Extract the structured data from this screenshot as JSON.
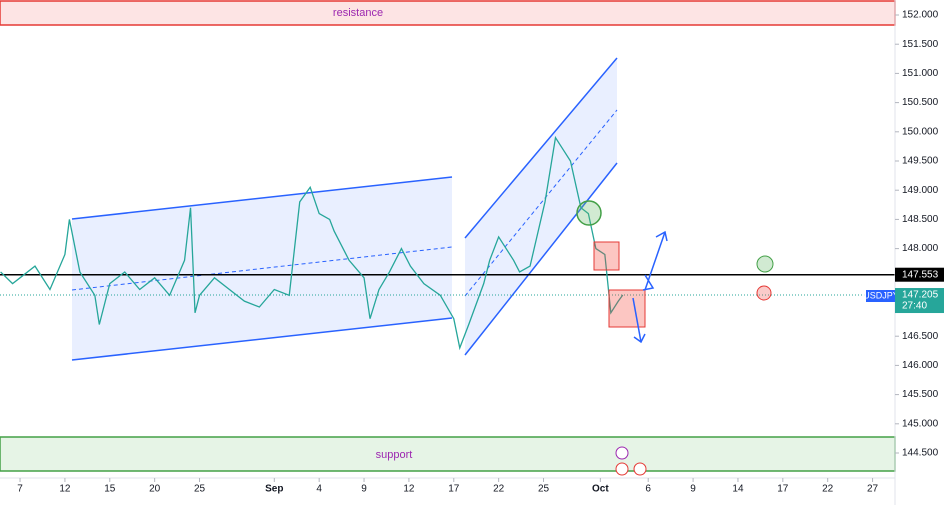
{
  "chart_data": {
    "type": "line",
    "symbol": "USDJPY",
    "countdown": "27:40",
    "annotations": [
      "resistance",
      "support"
    ],
    "last_price": 147.205,
    "hline": 147.553,
    "xlim": [
      -1.34,
      58.5
    ],
    "ylim": [
      144.072,
      152.257
    ],
    "xticks": [
      {
        "value": 0,
        "label": "7"
      },
      {
        "value": 3,
        "label": "12"
      },
      {
        "value": 6,
        "label": "15"
      },
      {
        "value": 9,
        "label": "20"
      },
      {
        "value": 12,
        "label": "25"
      },
      {
        "value": 17,
        "label": "Sep"
      },
      {
        "value": 20,
        "label": "4"
      },
      {
        "value": 23,
        "label": "9"
      },
      {
        "value": 26,
        "label": "12"
      },
      {
        "value": 29,
        "label": "17"
      },
      {
        "value": 32,
        "label": "22"
      },
      {
        "value": 35,
        "label": "25"
      },
      {
        "value": 38.8,
        "label": "Oct"
      },
      {
        "value": 42,
        "label": "6"
      },
      {
        "value": 45,
        "label": "9"
      },
      {
        "value": 48,
        "label": "14"
      },
      {
        "value": 51,
        "label": "17"
      },
      {
        "value": 54,
        "label": "22"
      },
      {
        "value": 57,
        "label": "27"
      }
    ],
    "yticks": [
      {
        "value": 144.5,
        "label": "144.500"
      },
      {
        "value": 145,
        "label": "145.000"
      },
      {
        "value": 145.5,
        "label": "145.500"
      },
      {
        "value": 146,
        "label": "146.000"
      },
      {
        "value": 146.5,
        "label": "146.500"
      },
      {
        "value": 147,
        "label": "147.000"
      },
      {
        "value": 147.5,
        "label": "147.500"
      },
      {
        "value": 148,
        "label": "148.000"
      },
      {
        "value": 148.5,
        "label": "148.500"
      },
      {
        "value": 149,
        "label": "149.000"
      },
      {
        "value": 149.5,
        "label": "149.500"
      },
      {
        "value": 150,
        "label": "150.000"
      },
      {
        "value": 150.5,
        "label": "150.500"
      },
      {
        "value": 151,
        "label": "151.000"
      },
      {
        "value": 151.5,
        "label": "151.500"
      },
      {
        "value": 152,
        "label": "152.000"
      }
    ],
    "x": [
      -1.3,
      -0.5,
      0,
      1,
      2,
      3,
      3.3,
      4,
      5,
      5.3,
      6,
      7,
      8,
      9,
      10,
      11,
      11.4,
      11.7,
      12,
      13,
      14,
      15,
      16,
      17,
      18,
      18.7,
      19.4,
      20,
      20.7,
      21,
      22,
      23,
      23.4,
      24,
      24.7,
      25.5,
      26.1,
      27,
      28.1,
      29,
      29.4,
      30,
      31,
      31.4,
      32,
      33,
      33.4,
      34.1,
      35.1,
      35.8,
      36.3,
      36.8,
      37.5,
      38,
      38.5,
      39.1,
      39.5,
      40,
      40.3
    ],
    "series": [
      {
        "color": "#26a69a",
        "values": [
          147.6,
          147.4,
          147.5,
          147.7,
          147.3,
          147.9,
          148.5,
          147.6,
          147.2,
          146.7,
          147.4,
          147.6,
          147.3,
          147.5,
          147.2,
          147.8,
          148.7,
          146.9,
          147.2,
          147.5,
          147.3,
          147.1,
          147.0,
          147.3,
          147.2,
          148.8,
          149.05,
          148.6,
          148.5,
          148.3,
          147.8,
          147.5,
          146.8,
          147.3,
          147.6,
          148.0,
          147.7,
          147.4,
          147.2,
          146.8,
          146.3,
          146.7,
          147.4,
          147.8,
          148.2,
          147.8,
          147.6,
          147.7,
          148.8,
          149.9,
          149.7,
          149.5,
          148.7,
          148.6,
          148.0,
          147.9,
          146.9,
          147.1,
          147.205
        ]
      }
    ]
  }
}
